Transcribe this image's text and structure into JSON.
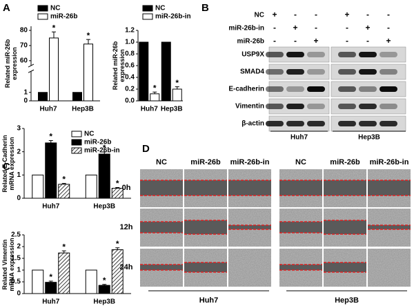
{
  "chart_data": [
    {
      "type": "bar",
      "panel": "A",
      "ylabel": "Related miR-26b expression",
      "categories": [
        "Huh7",
        "Hep3B"
      ],
      "series": [
        {
          "name": "NC",
          "color": "#000000",
          "values": [
            1,
            1
          ]
        },
        {
          "name": "miR-26b",
          "color": "#ffffff",
          "values": [
            75,
            71
          ],
          "errors": [
            4,
            3
          ],
          "significance": [
            "*",
            "*"
          ]
        }
      ],
      "ylim": [
        0,
        80
      ],
      "ybreak": [
        1,
        60
      ],
      "yticks": [
        0,
        1,
        60,
        70,
        80
      ],
      "legend": true
    },
    {
      "type": "bar",
      "ylabel": "Related miR-26b expression",
      "categories": [
        "Huh7",
        "Hep3B"
      ],
      "series": [
        {
          "name": "NC",
          "color": "#000000",
          "values": [
            1,
            1
          ]
        },
        {
          "name": "miR-26b-in",
          "color": "#ffffff",
          "values": [
            0.12,
            0.2
          ],
          "errors": [
            0.03,
            0.04
          ],
          "significance": [
            "*",
            "*"
          ]
        }
      ],
      "ylim": [
        0,
        1.2
      ],
      "yticks": [
        {
          "value": 0,
          "label": "0.0"
        },
        0.2,
        0.4,
        0.6,
        0.8,
        {
          "value": 1,
          "label": "1.0"
        },
        1.2
      ],
      "legend": true
    },
    {
      "type": "bar",
      "panel": "C",
      "ylabel": "Related E-Cadherin mRNA expression",
      "categories": [
        "Huh7",
        "Hep3B"
      ],
      "series": [
        {
          "name": "NC",
          "color": "#ffffff",
          "values": [
            1,
            1
          ]
        },
        {
          "name": "miR-26b",
          "color": "#000000",
          "values": [
            2.38,
            1.9
          ],
          "errors": [
            0.1,
            0.09
          ],
          "significance": [
            "*",
            "*"
          ]
        },
        {
          "name": "miR-26b-in",
          "color": "#ffffff",
          "hatch": true,
          "values": [
            0.6,
            0.43
          ],
          "errors": [
            0.04,
            0.03
          ],
          "significance": [
            "*",
            "*"
          ]
        }
      ],
      "ylim": [
        0,
        3
      ],
      "yticks": [
        0,
        1,
        2,
        3
      ],
      "legend": true
    },
    {
      "type": "bar",
      "ylabel": "Related Vimentin mRNA expression",
      "categories": [
        "Huh7",
        "Hep3B"
      ],
      "series": [
        {
          "color": "#ffffff",
          "values": [
            1,
            1
          ]
        },
        {
          "color": "#000000",
          "values": [
            0.48,
            0.35
          ],
          "errors": [
            0.05,
            0.04
          ],
          "significance": [
            "*",
            "*"
          ]
        },
        {
          "color": "#ffffff",
          "hatch": true,
          "values": [
            1.73,
            1.87
          ],
          "errors": [
            0.09,
            0.08
          ],
          "significance": [
            "*",
            "*"
          ]
        }
      ],
      "ylim": [
        0,
        2.5
      ],
      "yticks": [
        0,
        0.5,
        1,
        1.5,
        2,
        2.5
      ],
      "legend": false
    }
  ],
  "western_blot": {
    "panel": "B",
    "conditions": [
      {
        "name": "NC",
        "signs": [
          "+",
          "-",
          "-",
          "+",
          "-",
          "-"
        ]
      },
      {
        "name": "miR-26b-in",
        "signs": [
          "-",
          "+",
          "-",
          "-",
          "+",
          "-"
        ]
      },
      {
        "name": "miR-26b",
        "signs": [
          "-",
          "-",
          "+",
          "-",
          "-",
          "+"
        ]
      }
    ],
    "proteins": [
      "USP9X",
      "SMAD4",
      "E-cadherin",
      "Vimentin",
      "β-actin"
    ],
    "groups": [
      "Huh7",
      "Hep3B"
    ]
  },
  "scratch_assay": {
    "panel": "D",
    "columns": [
      "NC",
      "miR-26b",
      "miR-26b-in",
      "NC",
      "miR-26b",
      "miR-26b-in"
    ],
    "timepoints": [
      "0h",
      "12h",
      "24h"
    ],
    "groups": [
      "Huh7",
      "Hep3B"
    ]
  }
}
